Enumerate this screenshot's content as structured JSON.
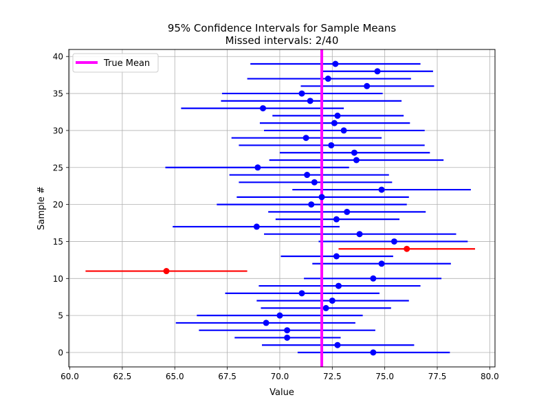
{
  "chart_data": {
    "type": "scatter",
    "title": "95% Confidence Intervals for Sample Means",
    "subtitle": "Missed intervals: 2/40",
    "xlabel": "Value",
    "ylabel": "Sample #",
    "xlim": [
      59.95,
      80.25
    ],
    "ylim": [
      -1.95,
      40.95
    ],
    "xticks": [
      "60.0",
      "62.5",
      "65.0",
      "67.5",
      "70.0",
      "72.5",
      "75.0",
      "77.5",
      "80.0"
    ],
    "yticks": [
      "0",
      "5",
      "10",
      "15",
      "20",
      "25",
      "30",
      "35",
      "40"
    ],
    "grid": true,
    "legend": {
      "placement": "top-left",
      "entries": [
        {
          "label": "True Mean",
          "color": "#ff00ff"
        }
      ]
    },
    "true_mean": 72.0,
    "colors": {
      "covered": "#0000ff",
      "missed": "#ff0000",
      "true_mean": "#ff00ff",
      "grid": "#b0b0b0"
    },
    "intervals": [
      {
        "sample": 0,
        "mean": 74.45,
        "lower": 70.85,
        "upper": 78.1,
        "missed": false
      },
      {
        "sample": 1,
        "mean": 72.75,
        "lower": 69.15,
        "upper": 76.4,
        "missed": false
      },
      {
        "sample": 2,
        "mean": 70.35,
        "lower": 67.85,
        "upper": 72.9,
        "missed": false
      },
      {
        "sample": 3,
        "mean": 70.35,
        "lower": 66.15,
        "upper": 74.55,
        "missed": false
      },
      {
        "sample": 4,
        "mean": 69.35,
        "lower": 65.05,
        "upper": 73.6,
        "missed": false
      },
      {
        "sample": 5,
        "mean": 70.0,
        "lower": 66.05,
        "upper": 73.95,
        "missed": false
      },
      {
        "sample": 6,
        "mean": 72.2,
        "lower": 69.1,
        "upper": 75.3,
        "missed": false
      },
      {
        "sample": 7,
        "mean": 72.5,
        "lower": 68.9,
        "upper": 76.15,
        "missed": false
      },
      {
        "sample": 8,
        "mean": 71.05,
        "lower": 67.4,
        "upper": 74.75,
        "missed": false
      },
      {
        "sample": 9,
        "mean": 72.8,
        "lower": 69.0,
        "upper": 76.7,
        "missed": false
      },
      {
        "sample": 10,
        "mean": 74.45,
        "lower": 71.15,
        "upper": 77.7,
        "missed": false
      },
      {
        "sample": 11,
        "mean": 64.6,
        "lower": 60.75,
        "upper": 68.45,
        "missed": true
      },
      {
        "sample": 12,
        "mean": 74.85,
        "lower": 71.55,
        "upper": 78.15,
        "missed": false
      },
      {
        "sample": 13,
        "mean": 72.7,
        "lower": 70.05,
        "upper": 75.4,
        "missed": false
      },
      {
        "sample": 14,
        "mean": 76.05,
        "lower": 72.8,
        "upper": 79.3,
        "missed": true
      },
      {
        "sample": 15,
        "mean": 75.45,
        "lower": 71.85,
        "upper": 78.95,
        "missed": false
      },
      {
        "sample": 16,
        "mean": 73.8,
        "lower": 69.25,
        "upper": 78.4,
        "missed": false
      },
      {
        "sample": 17,
        "mean": 68.9,
        "lower": 64.9,
        "upper": 72.85,
        "missed": false
      },
      {
        "sample": 18,
        "mean": 72.7,
        "lower": 69.8,
        "upper": 75.7,
        "missed": false
      },
      {
        "sample": 19,
        "mean": 73.2,
        "lower": 69.45,
        "upper": 76.95,
        "missed": false
      },
      {
        "sample": 20,
        "mean": 71.5,
        "lower": 67.0,
        "upper": 76.05,
        "missed": false
      },
      {
        "sample": 21,
        "mean": 72.0,
        "lower": 67.95,
        "upper": 76.15,
        "missed": false
      },
      {
        "sample": 22,
        "mean": 74.85,
        "lower": 70.6,
        "upper": 79.1,
        "missed": false
      },
      {
        "sample": 23,
        "mean": 71.65,
        "lower": 68.05,
        "upper": 75.35,
        "missed": false
      },
      {
        "sample": 24,
        "mean": 71.3,
        "lower": 67.6,
        "upper": 75.2,
        "missed": false
      },
      {
        "sample": 25,
        "mean": 68.95,
        "lower": 64.55,
        "upper": 73.3,
        "missed": false
      },
      {
        "sample": 26,
        "mean": 73.65,
        "lower": 69.5,
        "upper": 77.8,
        "missed": false
      },
      {
        "sample": 27,
        "mean": 73.55,
        "lower": 70.0,
        "upper": 77.15,
        "missed": false
      },
      {
        "sample": 28,
        "mean": 72.45,
        "lower": 68.05,
        "upper": 76.9,
        "missed": false
      },
      {
        "sample": 29,
        "mean": 71.25,
        "lower": 67.7,
        "upper": 74.85,
        "missed": false
      },
      {
        "sample": 30,
        "mean": 73.05,
        "lower": 69.25,
        "upper": 76.9,
        "missed": false
      },
      {
        "sample": 31,
        "mean": 72.6,
        "lower": 69.05,
        "upper": 76.2,
        "missed": false
      },
      {
        "sample": 32,
        "mean": 72.75,
        "lower": 69.65,
        "upper": 75.9,
        "missed": false
      },
      {
        "sample": 33,
        "mean": 69.2,
        "lower": 65.3,
        "upper": 73.05,
        "missed": false
      },
      {
        "sample": 34,
        "mean": 71.45,
        "lower": 67.2,
        "upper": 75.8,
        "missed": false
      },
      {
        "sample": 35,
        "mean": 71.05,
        "lower": 67.25,
        "upper": 74.9,
        "missed": false
      },
      {
        "sample": 36,
        "mean": 74.15,
        "lower": 71.0,
        "upper": 77.35,
        "missed": false
      },
      {
        "sample": 37,
        "mean": 72.3,
        "lower": 68.45,
        "upper": 76.25,
        "missed": false
      },
      {
        "sample": 38,
        "mean": 74.65,
        "lower": 71.95,
        "upper": 77.3,
        "missed": false
      },
      {
        "sample": 39,
        "mean": 72.65,
        "lower": 68.6,
        "upper": 76.7,
        "missed": false
      }
    ]
  }
}
